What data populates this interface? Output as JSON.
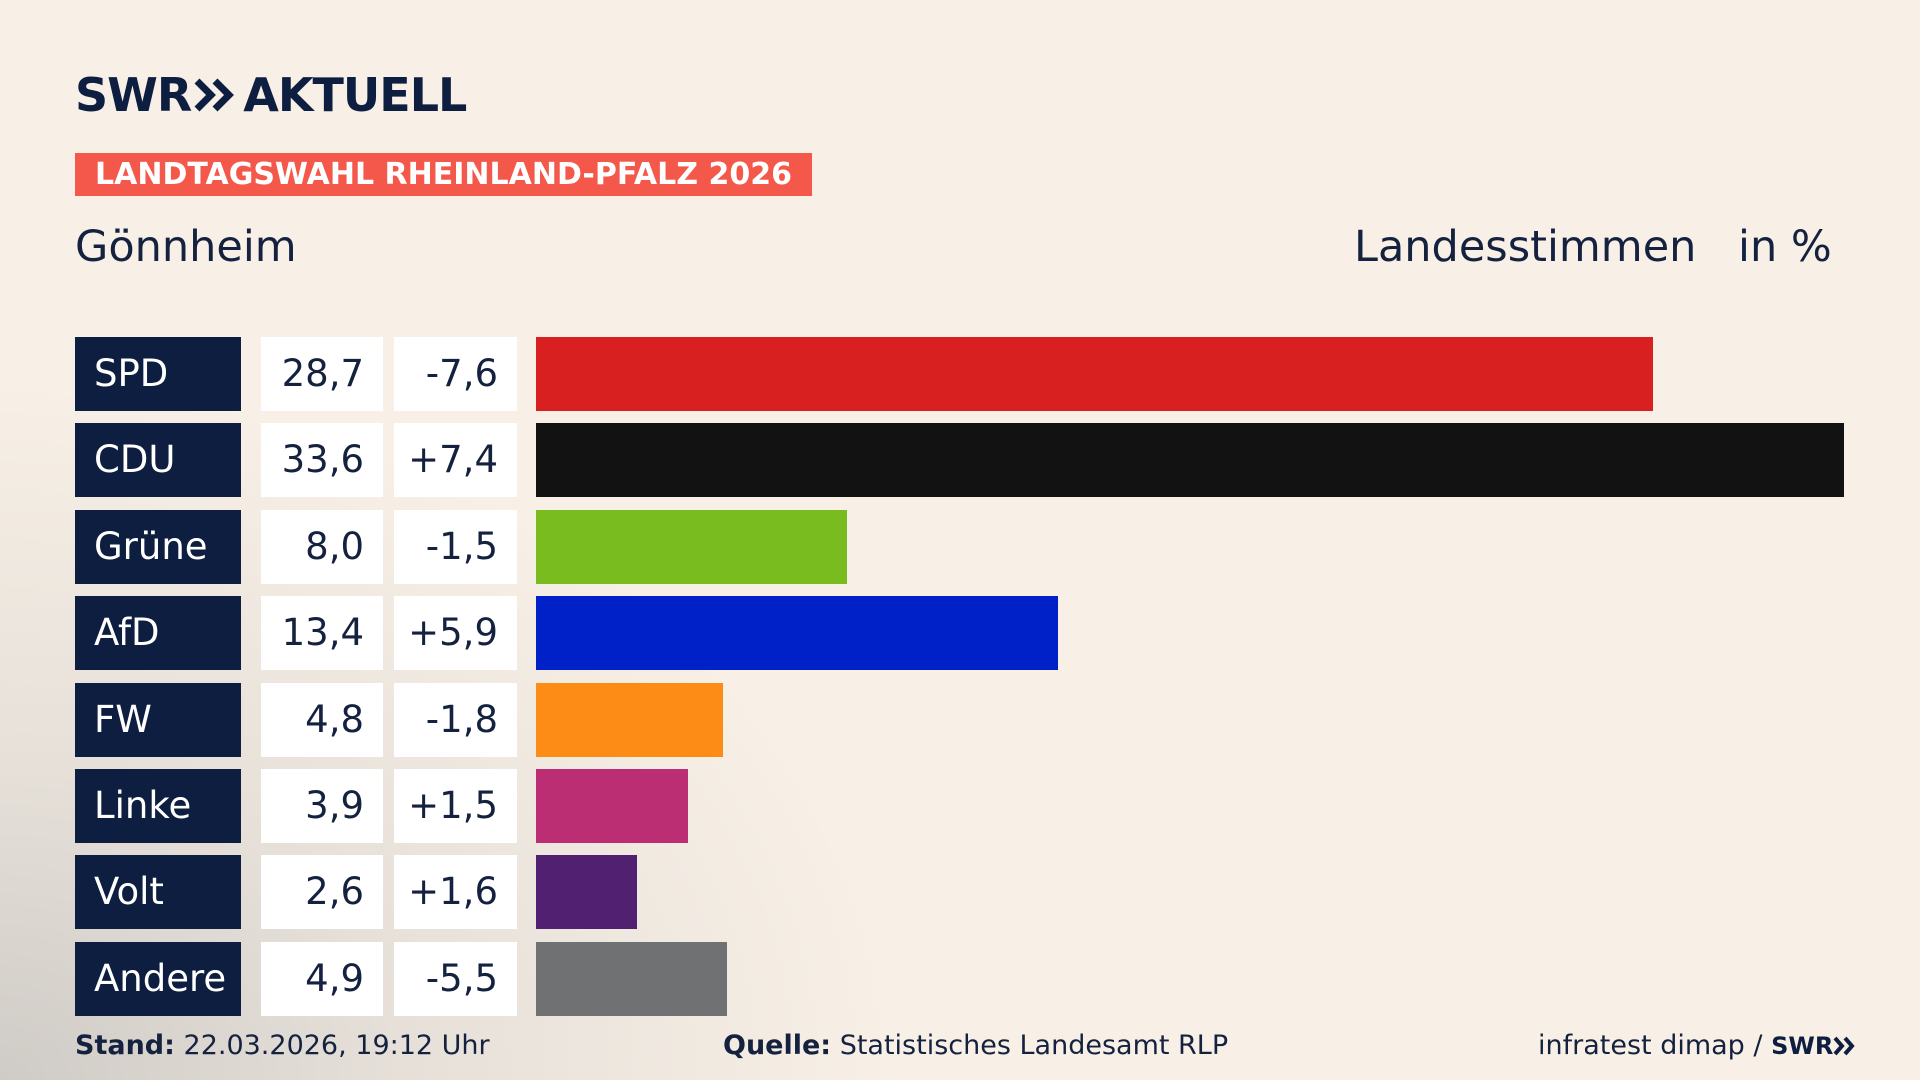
{
  "logo": "SWR",
  "logo_suffix": "AKTUELL",
  "chart_data": {
    "type": "bar",
    "kicker": "LANDTAGSWAHL RHEINLAND-PFALZ 2026",
    "title": "Gönnheim",
    "subtitle": "Landesstimmen",
    "unit": "in %",
    "categories": [
      "SPD",
      "CDU",
      "Grüne",
      "AfD",
      "FW",
      "Linke",
      "Volt",
      "Andere"
    ],
    "values": [
      28.7,
      33.6,
      8.0,
      13.4,
      4.8,
      3.9,
      2.6,
      4.9
    ],
    "value_labels": [
      "28,7",
      "33,6",
      "8,0",
      "13,4",
      "4,8",
      "3,9",
      "2,6",
      "4,9"
    ],
    "changes": [
      "-7,6",
      "+7,4",
      "-1,5",
      "+5,9",
      "-1,8",
      "+1,5",
      "+1,6",
      "-5,5"
    ],
    "colors": [
      "#d7201f",
      "#121212",
      "#79bc1f",
      "#0021c8",
      "#fd8c16",
      "#bc2e74",
      "#512070",
      "#707172"
    ]
  },
  "footer": {
    "stand_label": "Stand:",
    "stand": "22.03.2026, 19:12 Uhr",
    "source_label": "Quelle:",
    "source": "Statistisches Landesamt RLP",
    "credit": "infratest dimap /",
    "credit_logo": "SWR"
  }
}
